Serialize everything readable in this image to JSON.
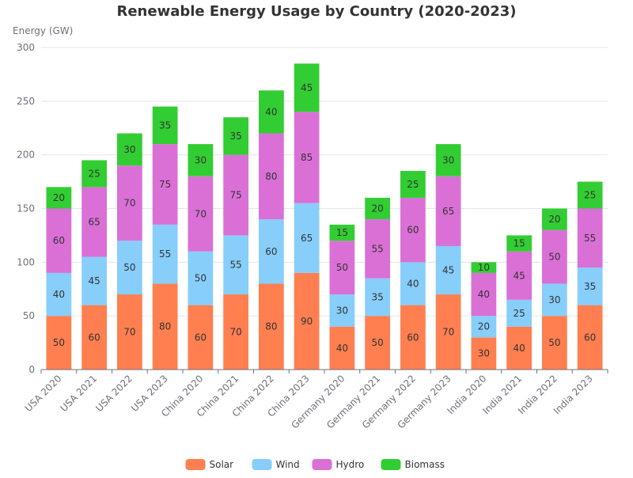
{
  "chart_data": {
    "type": "bar",
    "stacked": true,
    "title": "Renewable Energy Usage by Country (2020-2023)",
    "ylabel": "Energy (GW)",
    "xlabel": "",
    "ylim": [
      0,
      300
    ],
    "yticks": [
      0,
      50,
      100,
      150,
      200,
      250,
      300
    ],
    "grid": true,
    "legend_position": "bottom",
    "categories": [
      "USA 2020",
      "USA 2021",
      "USA 2022",
      "USA 2023",
      "China 2020",
      "China 2021",
      "China 2022",
      "China 2023",
      "Germany 2020",
      "Germany 2021",
      "Germany 2022",
      "Germany 2023",
      "India 2020",
      "India 2021",
      "India 2022",
      "India 2023"
    ],
    "series": [
      {
        "name": "Solar",
        "color": "#ff7f50",
        "values": [
          50,
          60,
          70,
          80,
          60,
          70,
          80,
          90,
          40,
          50,
          60,
          70,
          30,
          40,
          50,
          60
        ]
      },
      {
        "name": "Wind",
        "color": "#87cefa",
        "values": [
          40,
          45,
          50,
          55,
          50,
          55,
          60,
          65,
          30,
          35,
          40,
          45,
          20,
          25,
          30,
          35
        ]
      },
      {
        "name": "Hydro",
        "color": "#da70d6",
        "values": [
          60,
          65,
          70,
          75,
          70,
          75,
          80,
          85,
          50,
          55,
          60,
          65,
          40,
          45,
          50,
          55
        ]
      },
      {
        "name": "Biomass",
        "color": "#32cd32",
        "values": [
          20,
          25,
          30,
          35,
          30,
          35,
          40,
          45,
          15,
          20,
          25,
          30,
          10,
          15,
          20,
          25
        ]
      }
    ]
  }
}
